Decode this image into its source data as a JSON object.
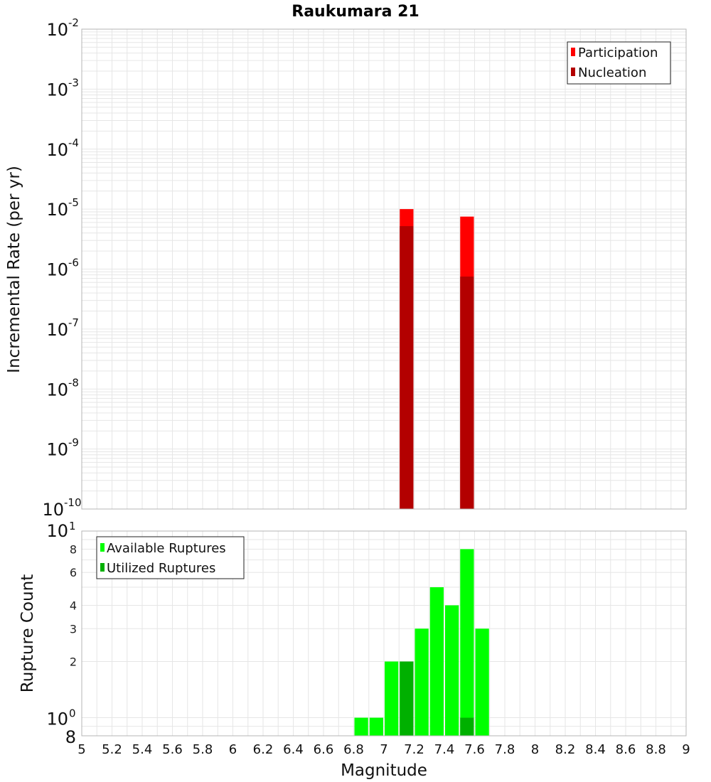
{
  "title": "Raukumara 21",
  "colors": {
    "participation": "#ff0000",
    "nucleation": "#b30000",
    "available": "#00ff00",
    "utilized": "#00b000",
    "grid": "#e6e6e6",
    "frame": "#b4b4b4"
  },
  "chart_data": [
    {
      "type": "bar",
      "panel": "top",
      "ylabel": "Incremental Rate (per yr)",
      "yscale": "log",
      "ylim": [
        1e-10,
        0.01
      ],
      "xlim": [
        5,
        9
      ],
      "y_ticks": [
        {
          "base": "10",
          "exp": "-10"
        },
        {
          "base": "10",
          "exp": "-9"
        },
        {
          "base": "10",
          "exp": "-8"
        },
        {
          "base": "10",
          "exp": "-7"
        },
        {
          "base": "10",
          "exp": "-6"
        },
        {
          "base": "10",
          "exp": "-5"
        },
        {
          "base": "10",
          "exp": "-4"
        },
        {
          "base": "10",
          "exp": "-3"
        },
        {
          "base": "10",
          "exp": "-2"
        }
      ],
      "legend": [
        "Participation",
        "Nucleation"
      ],
      "legend_position": "top-right",
      "series": [
        {
          "name": "Participation",
          "x": [
            7.15,
            7.55
          ],
          "values": [
            1e-05,
            7.5e-06
          ]
        },
        {
          "name": "Nucleation",
          "x": [
            7.15,
            7.55
          ],
          "values": [
            5.2e-06,
            7.5e-07
          ]
        }
      ]
    },
    {
      "type": "bar",
      "panel": "bottom",
      "xlabel": "Magnitude",
      "ylabel": "Rupture Count",
      "yscale": "log",
      "ylim": [
        0.8,
        10
      ],
      "xlim": [
        5,
        9
      ],
      "x_ticks": [
        "5",
        "5.2",
        "5.4",
        "5.6",
        "5.8",
        "6",
        "6.2",
        "6.4",
        "6.6",
        "6.8",
        "7",
        "7.2",
        "7.4",
        "7.6",
        "7.8",
        "8",
        "8.2",
        "8.4",
        "8.6",
        "8.8",
        "9"
      ],
      "y_ticks_small": [
        "2",
        "3",
        "4",
        "6",
        "8"
      ],
      "y_tick_top": {
        "base": "10",
        "exp": "1"
      },
      "y_tick_one": {
        "base": "10",
        "exp": "0"
      },
      "y_tick_bottom": "8",
      "legend": [
        "Available Ruptures",
        "Utilized Ruptures"
      ],
      "legend_position": "top-left",
      "series": [
        {
          "name": "Available Ruptures",
          "x": [
            6.85,
            6.95,
            7.05,
            7.15,
            7.25,
            7.35,
            7.45,
            7.55,
            7.65
          ],
          "values": [
            1,
            1,
            2,
            2,
            3,
            5,
            4,
            8,
            3
          ]
        },
        {
          "name": "Utilized Ruptures",
          "x": [
            7.15,
            7.55
          ],
          "values": [
            2,
            1
          ]
        }
      ]
    }
  ]
}
